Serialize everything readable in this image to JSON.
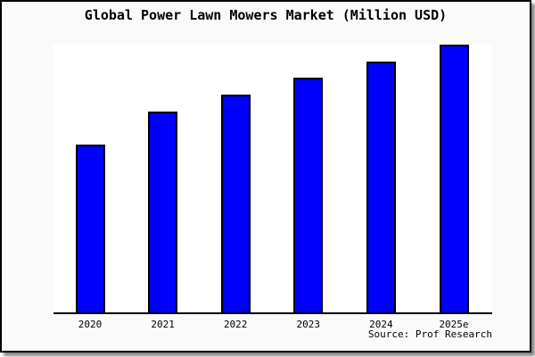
{
  "page": {
    "background_color": "#fafafa",
    "plot_background_color": "#ffffff",
    "border_color": "#000000"
  },
  "chart_data": {
    "type": "bar",
    "title": "Global Power Lawn Mowers Market (Million USD)",
    "categories": [
      "2020",
      "2021",
      "2022",
      "2023",
      "2024",
      "2025e"
    ],
    "values": [
      62.7,
      75.0,
      81.3,
      87.7,
      93.7,
      100.0
    ],
    "value_basis": "percent of tallest bar (y-axis has no tick labels in image)",
    "xlabel": "",
    "ylabel": "",
    "ylim": [
      0,
      100
    ],
    "grid": false,
    "legend": null,
    "bar_color": "#0000ff",
    "bar_edge_color": "#000000",
    "source": "Source: Prof Research"
  }
}
